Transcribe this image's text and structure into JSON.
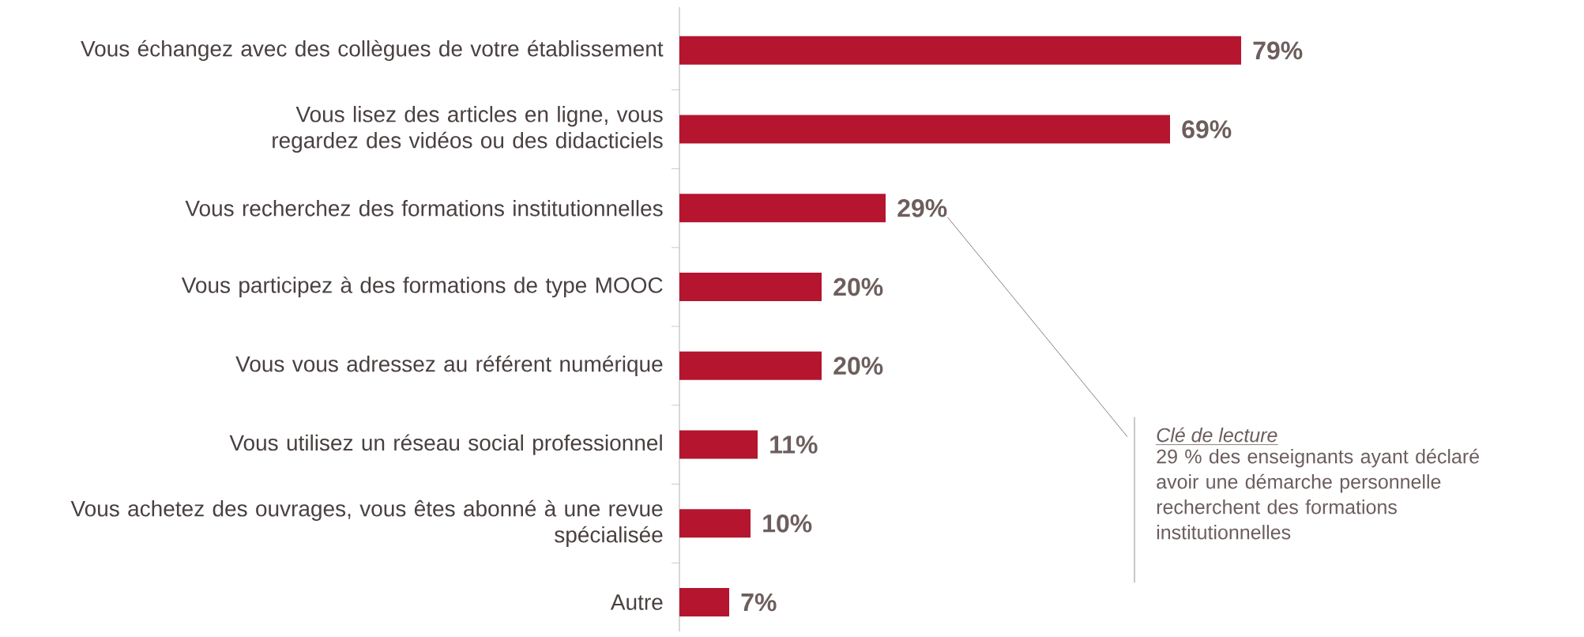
{
  "chart_data": {
    "type": "bar",
    "orientation": "horizontal",
    "categories": [
      "Vous échangez avec des collègues de votre établissement",
      "Vous lisez des articles en ligne, vous regardez des vidéos ou des didacticiels",
      "Vous recherchez des formations institutionnelles",
      "Vous participez à des formations de type MOOC",
      "Vous vous adressez au référent numérique",
      "Vous utilisez un réseau social professionnel",
      "Vous achetez des ouvrages, vous êtes abonné à une revue spécialisée",
      "Autre"
    ],
    "values": [
      79,
      69,
      29,
      20,
      20,
      11,
      10,
      7
    ],
    "value_labels": [
      "79%",
      "69%",
      "29%",
      "20%",
      "20%",
      "11%",
      "10%",
      "7%"
    ],
    "color": "#b5152f",
    "tick_labels": "y",
    "annotations": [
      "Clé de lecture",
      "29 % des enseignants ayant déclaré avoir une démarche personnelle recherchent des formations institutionnelles"
    ]
  }
}
